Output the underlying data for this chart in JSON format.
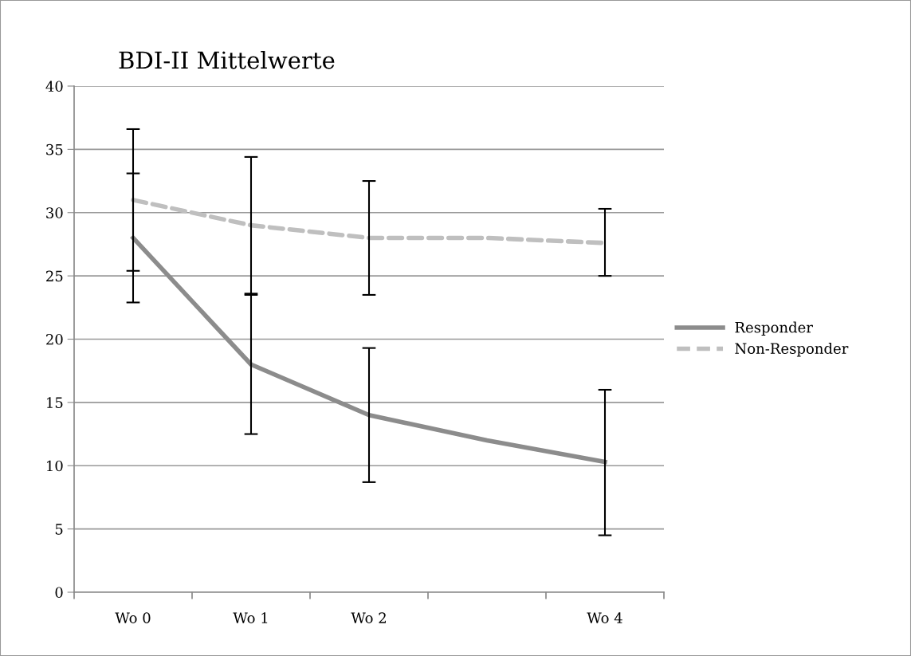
{
  "chart_data": {
    "type": "line",
    "title": "BDI-II Mittelwerte",
    "categories": [
      "Wo 0",
      "Wo 1",
      "Wo 2",
      null,
      "Wo 4"
    ],
    "series": [
      {
        "name": "Responder",
        "color": "#8c8c8c",
        "line_style": "solid",
        "values": [
          28,
          18,
          14,
          12,
          10.3
        ],
        "errors": [
          [
            22.9,
            33.1
          ],
          [
            12.5,
            23.5
          ],
          [
            8.7,
            19.3
          ],
          null,
          [
            4.5,
            16.0
          ]
        ]
      },
      {
        "name": "Non-Responder",
        "color": "#bfbfbf",
        "line_style": "dashed",
        "values": [
          31,
          29,
          28,
          28,
          27.6
        ],
        "errors": [
          [
            25.4,
            36.6
          ],
          [
            23.6,
            34.4
          ],
          [
            23.5,
            32.5
          ],
          null,
          [
            25.0,
            30.3
          ]
        ]
      }
    ],
    "ylim": [
      0,
      40
    ],
    "yticks": [
      0,
      5,
      10,
      15,
      20,
      25,
      30,
      35,
      40
    ],
    "grid": "y",
    "legend": "right",
    "marker": "none"
  }
}
